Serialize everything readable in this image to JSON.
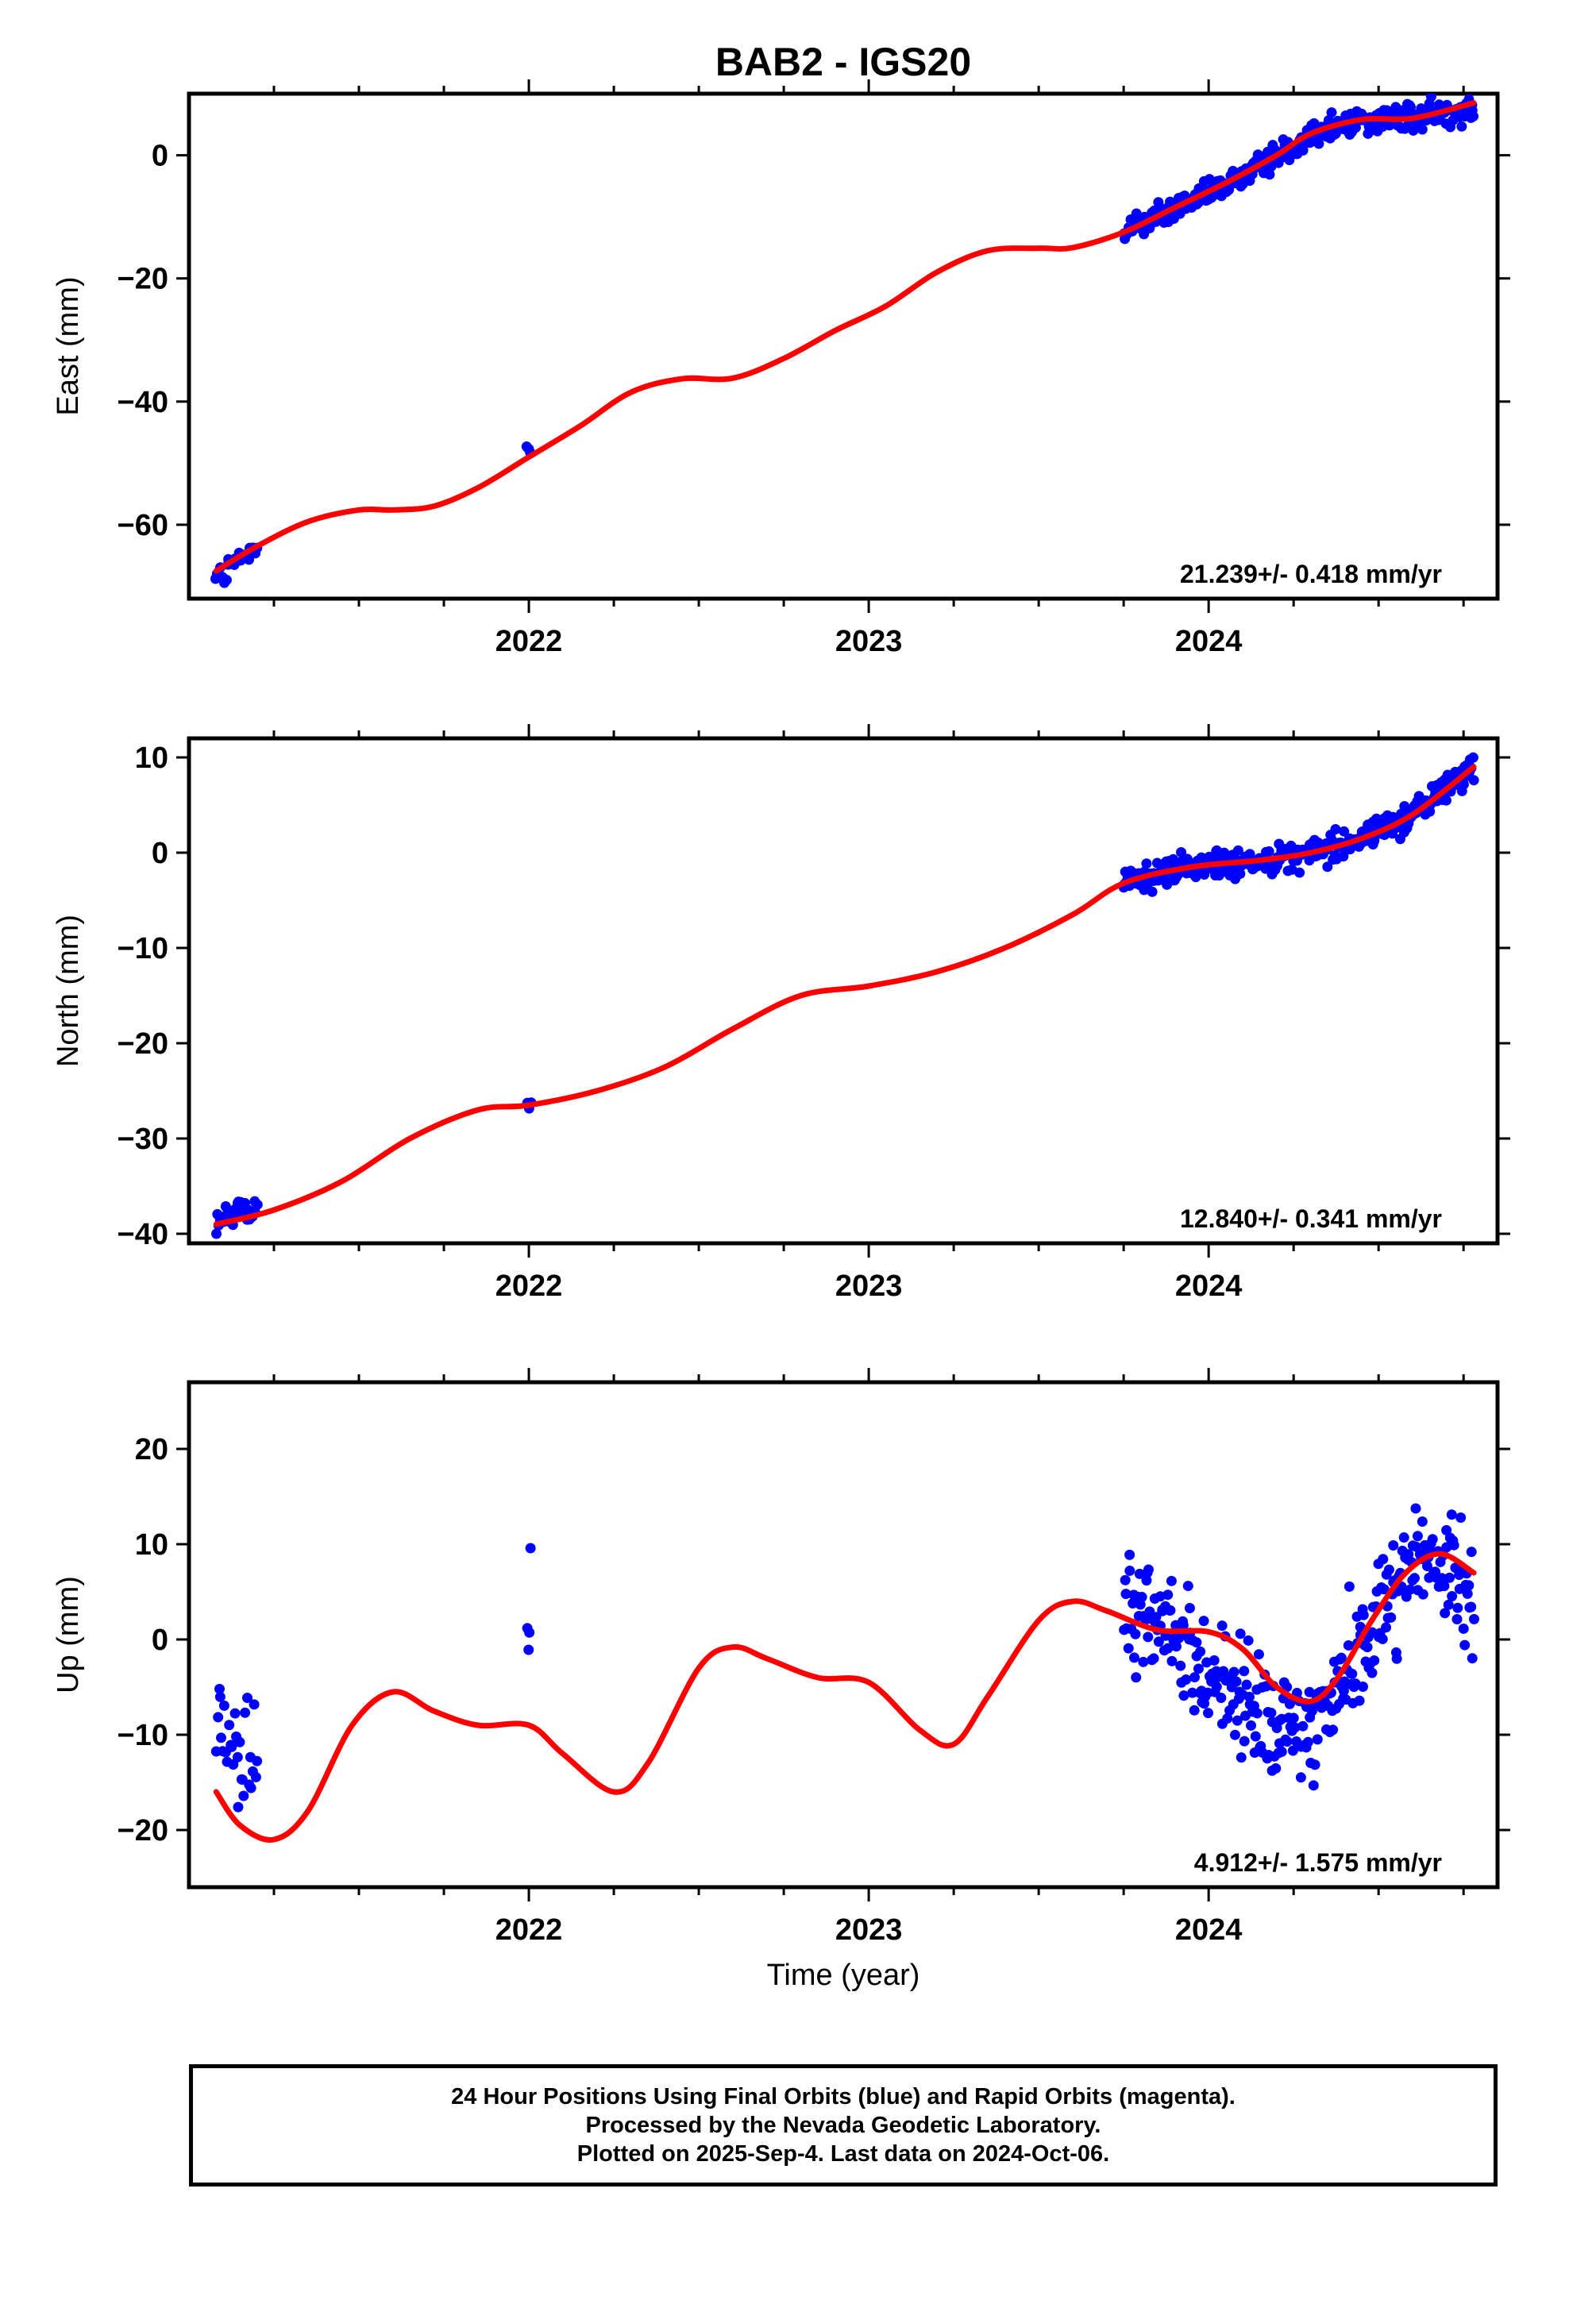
{
  "title": "BAB2 - IGS20",
  "x_axis_label": "Time (year)",
  "notes": [
    "24 Hour Positions Using Final Orbits (blue) and Rapid Orbits (magenta).",
    "Processed by the Nevada Geodetic Laboratory.",
    "Plotted on 2025-Sep-4. Last data on 2024-Oct-06."
  ],
  "colors": {
    "data": "#0000ff",
    "model": "#ff0000",
    "axes": "#000000"
  },
  "chart_data": [
    {
      "type": "scatter",
      "ylabel": "East (mm)",
      "rate_text": "21.239+/- 0.418 mm/yr",
      "xlim": [
        2021.0,
        2024.85
      ],
      "ylim": [
        -72,
        10
      ],
      "yticks": [
        0,
        -20,
        -40,
        -60
      ],
      "xticks": [
        2022,
        2023,
        2024
      ],
      "model_curve": [
        [
          2021.08,
          -67.5
        ],
        [
          2021.2,
          -63.5
        ],
        [
          2021.35,
          -59.5
        ],
        [
          2021.5,
          -57.6
        ],
        [
          2021.6,
          -57.6
        ],
        [
          2021.72,
          -57
        ],
        [
          2021.85,
          -54
        ],
        [
          2022.0,
          -49
        ],
        [
          2022.15,
          -44
        ],
        [
          2022.3,
          -38.5
        ],
        [
          2022.45,
          -36.3
        ],
        [
          2022.6,
          -36.2
        ],
        [
          2022.75,
          -33
        ],
        [
          2022.9,
          -28.5
        ],
        [
          2023.05,
          -24.5
        ],
        [
          2023.2,
          -19
        ],
        [
          2023.35,
          -15.5
        ],
        [
          2023.5,
          -15.1
        ],
        [
          2023.6,
          -15
        ],
        [
          2023.75,
          -12.5
        ],
        [
          2023.9,
          -8.5
        ],
        [
          2024.05,
          -4.5
        ],
        [
          2024.2,
          0
        ],
        [
          2024.3,
          3.5
        ],
        [
          2024.45,
          5.8
        ],
        [
          2024.6,
          6
        ],
        [
          2024.78,
          8.5
        ]
      ],
      "point_groups": [
        {
          "x_range": [
            2021.08,
            2021.2
          ],
          "count": 30,
          "trend": [
            [
              2021.08,
              -69
            ],
            [
              2021.2,
              -64
            ]
          ],
          "spread": 2.5
        },
        {
          "x_range": [
            2021.995,
            2022.005
          ],
          "count": 3,
          "trend": [
            [
              2022.0,
              -47.5
            ]
          ],
          "spread": 0.8
        },
        {
          "x_range": [
            2023.75,
            2024.78
          ],
          "count": 330,
          "trend": [
            [
              2023.75,
              -12
            ],
            [
              2023.9,
              -9
            ],
            [
              2024.05,
              -5
            ],
            [
              2024.2,
              0
            ],
            [
              2024.3,
              3.5
            ],
            [
              2024.45,
              5.8
            ],
            [
              2024.6,
              6
            ],
            [
              2024.78,
              8
            ]
          ],
          "spread": 2.2
        }
      ]
    },
    {
      "type": "scatter",
      "ylabel": "North (mm)",
      "rate_text": "12.840+/- 0.341 mm/yr",
      "xlim": [
        2021.0,
        2024.85
      ],
      "ylim": [
        -41,
        12
      ],
      "yticks": [
        10,
        0,
        -10,
        -20,
        -30,
        -40
      ],
      "xticks": [
        2022,
        2023,
        2024
      ],
      "model_curve": [
        [
          2021.08,
          -39
        ],
        [
          2021.25,
          -37.5
        ],
        [
          2021.45,
          -34.5
        ],
        [
          2021.65,
          -30
        ],
        [
          2021.85,
          -27
        ],
        [
          2022.0,
          -26.5
        ],
        [
          2022.2,
          -25
        ],
        [
          2022.4,
          -22.5
        ],
        [
          2022.6,
          -18.5
        ],
        [
          2022.8,
          -15
        ],
        [
          2023.0,
          -14
        ],
        [
          2023.2,
          -12.5
        ],
        [
          2023.4,
          -10
        ],
        [
          2023.6,
          -6.5
        ],
        [
          2023.75,
          -3.2
        ],
        [
          2023.95,
          -1.5
        ],
        [
          2024.15,
          -0.8
        ],
        [
          2024.3,
          0
        ],
        [
          2024.45,
          1.5
        ],
        [
          2024.6,
          4
        ],
        [
          2024.78,
          9
        ]
      ],
      "point_groups": [
        {
          "x_range": [
            2021.08,
            2021.2
          ],
          "count": 30,
          "trend": [
            [
              2021.08,
              -38.5
            ],
            [
              2021.2,
              -37.5
            ]
          ],
          "spread": 1.6
        },
        {
          "x_range": [
            2021.995,
            2022.005
          ],
          "count": 3,
          "trend": [
            [
              2022.0,
              -26
            ]
          ],
          "spread": 2.0
        },
        {
          "x_range": [
            2023.75,
            2024.78
          ],
          "count": 330,
          "trend": [
            [
              2023.75,
              -3
            ],
            [
              2023.95,
              -1.5
            ],
            [
              2024.15,
              -0.8
            ],
            [
              2024.3,
              0
            ],
            [
              2024.45,
              1.5
            ],
            [
              2024.6,
              4
            ],
            [
              2024.78,
              9
            ]
          ],
          "spread": 1.5
        }
      ]
    },
    {
      "type": "scatter",
      "ylabel": "Up (mm)",
      "rate_text": "4.912+/- 1.575 mm/yr",
      "xlim": [
        2021.0,
        2024.85
      ],
      "ylim": [
        -26,
        27
      ],
      "yticks": [
        20,
        10,
        0,
        -10,
        -20
      ],
      "xticks": [
        2022,
        2023,
        2024
      ],
      "model_curve": [
        [
          2021.08,
          -16
        ],
        [
          2021.15,
          -19.5
        ],
        [
          2021.25,
          -21
        ],
        [
          2021.35,
          -18
        ],
        [
          2021.48,
          -9
        ],
        [
          2021.6,
          -5.5
        ],
        [
          2021.72,
          -7.5
        ],
        [
          2021.85,
          -9
        ],
        [
          2022.0,
          -9
        ],
        [
          2022.1,
          -12
        ],
        [
          2022.25,
          -16
        ],
        [
          2022.35,
          -13
        ],
        [
          2022.5,
          -3
        ],
        [
          2022.6,
          -0.8
        ],
        [
          2022.7,
          -2
        ],
        [
          2022.85,
          -4
        ],
        [
          2023.0,
          -4.5
        ],
        [
          2023.15,
          -9.5
        ],
        [
          2023.25,
          -11
        ],
        [
          2023.35,
          -6
        ],
        [
          2023.5,
          2
        ],
        [
          2023.6,
          4
        ],
        [
          2023.7,
          3
        ],
        [
          2023.85,
          1
        ],
        [
          2024.0,
          0.8
        ],
        [
          2024.1,
          -1
        ],
        [
          2024.2,
          -5
        ],
        [
          2024.3,
          -6.5
        ],
        [
          2024.38,
          -4
        ],
        [
          2024.48,
          2
        ],
        [
          2024.58,
          7
        ],
        [
          2024.68,
          9
        ],
        [
          2024.78,
          7
        ]
      ],
      "point_groups": [
        {
          "x_range": [
            2021.08,
            2021.2
          ],
          "count": 30,
          "trend": [
            [
              2021.08,
              -10
            ],
            [
              2021.2,
              -13
            ]
          ],
          "spread": 7
        },
        {
          "x_range": [
            2021.995,
            2022.005
          ],
          "count": 4,
          "trend": [
            [
              2022.0,
              0
            ]
          ],
          "spread": 7
        },
        {
          "x_range": [
            2023.75,
            2024.78
          ],
          "count": 330,
          "trend": [
            [
              2023.75,
              5
            ],
            [
              2023.9,
              0
            ],
            [
              2024.05,
              -5
            ],
            [
              2024.2,
              -10
            ],
            [
              2024.3,
              -9
            ],
            [
              2024.45,
              -1
            ],
            [
              2024.6,
              9
            ],
            [
              2024.78,
              5
            ]
          ],
          "spread": 6
        }
      ]
    }
  ]
}
